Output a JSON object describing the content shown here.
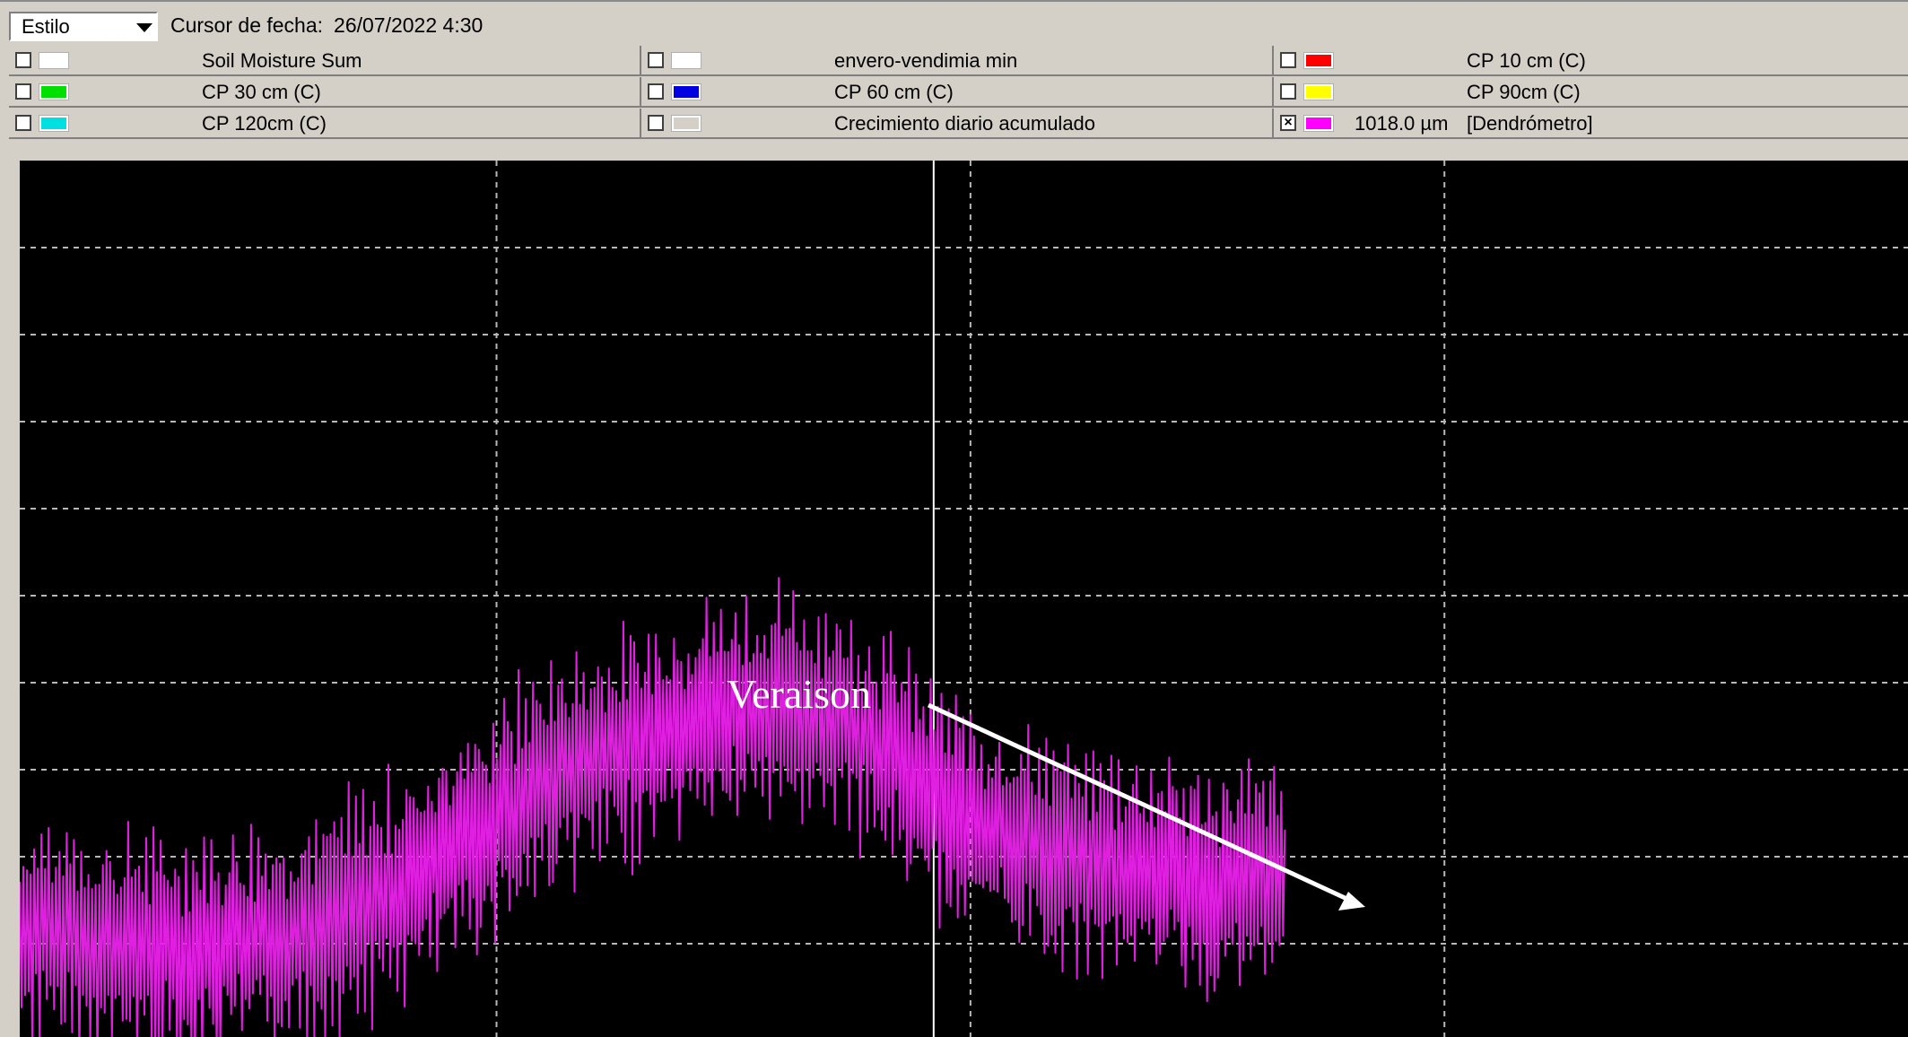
{
  "toolbar": {
    "style_select": "Estilo",
    "cursor_label": "Cursor de fecha:",
    "cursor_value": "26/07/2022 4:30"
  },
  "legend": {
    "rows": [
      [
        {
          "label": "Soil Moisture Sum",
          "color": "#ffffff",
          "checked": false
        },
        {
          "label": "envero-vendimia min",
          "color": "#ffffff",
          "checked": false
        },
        {
          "label": "CP 10 cm (C)",
          "color": "#ff0000",
          "checked": false
        }
      ],
      [
        {
          "label": "CP 30 cm (C)",
          "color": "#00e000",
          "checked": false
        },
        {
          "label": "CP 60 cm (C)",
          "color": "#0000e0",
          "checked": false
        },
        {
          "label": "CP 90cm (C)",
          "color": "#ffff00",
          "checked": false
        }
      ],
      [
        {
          "label": "CP 120cm (C)",
          "color": "#00e0e0",
          "checked": false
        },
        {
          "label": "Crecimiento diario acumulado",
          "color": "#d4d0c8",
          "checked": false
        },
        {
          "label": "[Dendrómetro]",
          "value": "1018.0 µm",
          "color": "#ff00ff",
          "checked": true
        }
      ]
    ]
  },
  "chart_data": {
    "type": "line",
    "series": [
      {
        "name": "[Dendrómetro]",
        "color": "#e020e0",
        "trend": [
          [
            0,
            0.145
          ],
          [
            0.04,
            0.13
          ],
          [
            0.08,
            0.12
          ],
          [
            0.12,
            0.13
          ],
          [
            0.16,
            0.15
          ],
          [
            0.2,
            0.19
          ],
          [
            0.24,
            0.25
          ],
          [
            0.28,
            0.32
          ],
          [
            0.32,
            0.35
          ],
          [
            0.36,
            0.39
          ],
          [
            0.4,
            0.4
          ],
          [
            0.43,
            0.39
          ],
          [
            0.46,
            0.35
          ],
          [
            0.48,
            0.3
          ],
          [
            0.51,
            0.26
          ],
          [
            0.54,
            0.24
          ],
          [
            0.57,
            0.22
          ],
          [
            0.6,
            0.21
          ],
          [
            0.63,
            0.2
          ],
          [
            0.67,
            0.2
          ]
        ]
      }
    ],
    "grid": true,
    "xlim": [
      0,
      1
    ],
    "ylim": [
      0,
      1
    ],
    "cursor_x": 0.484
  },
  "annotation": {
    "text": "Veraison"
  }
}
